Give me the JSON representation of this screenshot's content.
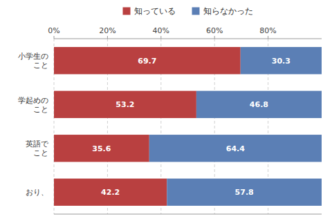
{
  "chart_data": {
    "type": "bar",
    "orientation": "horizontal",
    "stacked": true,
    "categories": [
      "小学生の\nこと",
      "学起めの\nこと",
      "英語で\nこと",
      "おり、"
    ],
    "series": [
      {
        "name": "知っている",
        "color": "#b94040",
        "values": [
          69.7,
          53.2,
          35.6,
          42.2
        ]
      },
      {
        "name": "知らなかった",
        "color": "#5b7fb5",
        "values": [
          30.3,
          46.8,
          64.4,
          57.8
        ]
      }
    ],
    "xlim": [
      0,
      100
    ],
    "xticks": [
      {
        "value": 0,
        "label": "0%"
      },
      {
        "value": 20,
        "label": "20%"
      },
      {
        "value": 40,
        "label": "40%"
      },
      {
        "value": 60,
        "label": "60%"
      },
      {
        "value": 80,
        "label": "80%"
      }
    ],
    "grid": true,
    "legend": "top",
    "data_labels": true
  }
}
